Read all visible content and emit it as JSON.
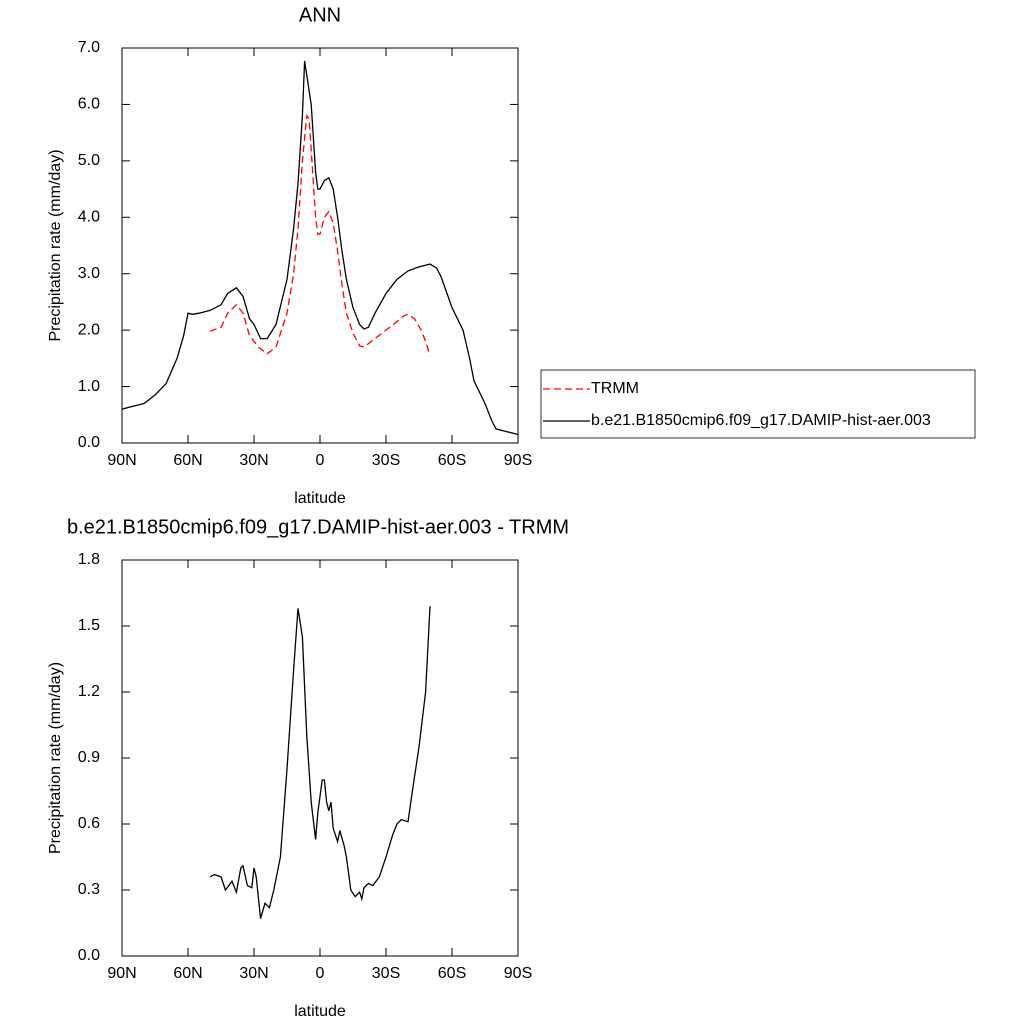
{
  "chart_data": [
    {
      "type": "line",
      "title": "ANN",
      "x_label": "latitude",
      "y_label": "Precipitation rate (mm/day)",
      "xlim": [
        90,
        -90
      ],
      "xticks": [
        {
          "value": 90,
          "label": "90N"
        },
        {
          "value": 60,
          "label": "60N"
        },
        {
          "value": 30,
          "label": "30N"
        },
        0,
        {
          "value": -30,
          "label": "30S"
        },
        {
          "value": -60,
          "label": "60S"
        },
        {
          "value": -90,
          "label": "90S"
        }
      ],
      "ylim": [
        0,
        7
      ],
      "yticks": [
        {
          "value": 0,
          "label": "0.0"
        },
        {
          "value": 1,
          "label": "1.0"
        },
        {
          "value": 2,
          "label": "2.0"
        },
        {
          "value": 3,
          "label": "3.0"
        },
        {
          "value": 4,
          "label": "4.0"
        },
        {
          "value": 5,
          "label": "5.0"
        },
        {
          "value": 6,
          "label": "6.0"
        },
        {
          "value": 7,
          "label": "7.0"
        }
      ],
      "series": [
        {
          "name": "TRMM",
          "color": "#ff0000",
          "dash": true,
          "x": [
            50,
            45,
            42,
            38,
            35,
            32,
            28,
            24,
            20,
            15,
            12,
            10,
            8,
            6,
            5,
            4,
            2,
            1,
            0,
            -2,
            -4,
            -6,
            -8,
            -10,
            -12,
            -15,
            -18,
            -20,
            -25,
            -30,
            -35,
            -38,
            -40,
            -43,
            -46,
            -48,
            -50
          ],
          "values": [
            1.98,
            2.05,
            2.3,
            2.45,
            2.3,
            1.9,
            1.7,
            1.58,
            1.7,
            2.3,
            3.0,
            3.8,
            5.0,
            5.8,
            5.75,
            5.2,
            4.0,
            3.7,
            3.7,
            4.0,
            4.1,
            3.9,
            3.4,
            2.8,
            2.3,
            1.95,
            1.72,
            1.7,
            1.85,
            2.0,
            2.15,
            2.25,
            2.28,
            2.2,
            2.0,
            1.8,
            1.55
          ]
        },
        {
          "name": "b.e21.B1850cmip6.f09_g17.DAMIP-hist-aer.003",
          "color": "#000000",
          "dash": false,
          "x": [
            90,
            85,
            80,
            75,
            70,
            65,
            62,
            60,
            58,
            55,
            50,
            45,
            42,
            38,
            35,
            32,
            30,
            27,
            24,
            20,
            15,
            12,
            10,
            8,
            7,
            4,
            2,
            1,
            0,
            -2,
            -4,
            -6,
            -8,
            -10,
            -12,
            -15,
            -18,
            -20,
            -22,
            -25,
            -30,
            -35,
            -40,
            -45,
            -50,
            -53,
            -55,
            -60,
            -65,
            -68,
            -70,
            -75,
            -78,
            -80,
            -85,
            -90
          ],
          "values": [
            0.6,
            0.65,
            0.7,
            0.85,
            1.05,
            1.5,
            1.9,
            2.3,
            2.28,
            2.3,
            2.35,
            2.45,
            2.65,
            2.75,
            2.6,
            2.2,
            2.1,
            1.85,
            1.85,
            2.1,
            2.9,
            3.8,
            4.6,
            5.8,
            6.77,
            6.0,
            4.8,
            4.5,
            4.5,
            4.65,
            4.7,
            4.5,
            4.0,
            3.4,
            2.9,
            2.4,
            2.1,
            2.02,
            2.05,
            2.3,
            2.65,
            2.9,
            3.05,
            3.12,
            3.17,
            3.1,
            2.95,
            2.4,
            2.0,
            1.5,
            1.1,
            0.7,
            0.4,
            0.25,
            0.2,
            0.15
          ]
        }
      ]
    },
    {
      "type": "line",
      "title": "b.e21.B1850cmip6.f09_g17.DAMIP-hist-aer.003 - TRMM",
      "x_label": "latitude",
      "y_label": "Precipitation rate (mm/day)",
      "xlim": [
        90,
        -90
      ],
      "xticks": [
        {
          "value": 90,
          "label": "90N"
        },
        {
          "value": 60,
          "label": "60N"
        },
        {
          "value": 30,
          "label": "30N"
        },
        0,
        {
          "value": -30,
          "label": "30S"
        },
        {
          "value": -60,
          "label": "60S"
        },
        {
          "value": -90,
          "label": "90S"
        }
      ],
      "ylim": [
        0,
        1.8
      ],
      "yticks": [
        {
          "value": 0,
          "label": "0.0"
        },
        0.3,
        0.6,
        0.9,
        1.2,
        1.5,
        1.8
      ],
      "series": [
        {
          "color": "#000000",
          "dash": false,
          "x": [
            50,
            48,
            45,
            43,
            40,
            38,
            36,
            35,
            33,
            31,
            30,
            29,
            27,
            25,
            23,
            21,
            18,
            15,
            12,
            10,
            8,
            6,
            4,
            2,
            1,
            -1,
            -2,
            -3,
            -4,
            -5,
            -6,
            -8,
            -9,
            -11,
            -12,
            -14,
            -16,
            -18,
            -19,
            -20,
            -22,
            -24,
            -27,
            -30,
            -33,
            -35,
            -37,
            -40,
            -42,
            -45,
            -48,
            -50
          ],
          "values": [
            0.36,
            0.37,
            0.36,
            0.3,
            0.34,
            0.29,
            0.4,
            0.41,
            0.32,
            0.31,
            0.4,
            0.36,
            0.17,
            0.24,
            0.22,
            0.3,
            0.45,
            0.85,
            1.3,
            1.58,
            1.45,
            1.0,
            0.7,
            0.53,
            0.65,
            0.8,
            0.8,
            0.7,
            0.66,
            0.7,
            0.58,
            0.52,
            0.57,
            0.5,
            0.45,
            0.3,
            0.27,
            0.29,
            0.26,
            0.31,
            0.33,
            0.32,
            0.36,
            0.45,
            0.55,
            0.6,
            0.62,
            0.61,
            0.75,
            0.95,
            1.2,
            1.59
          ]
        }
      ]
    }
  ]
}
